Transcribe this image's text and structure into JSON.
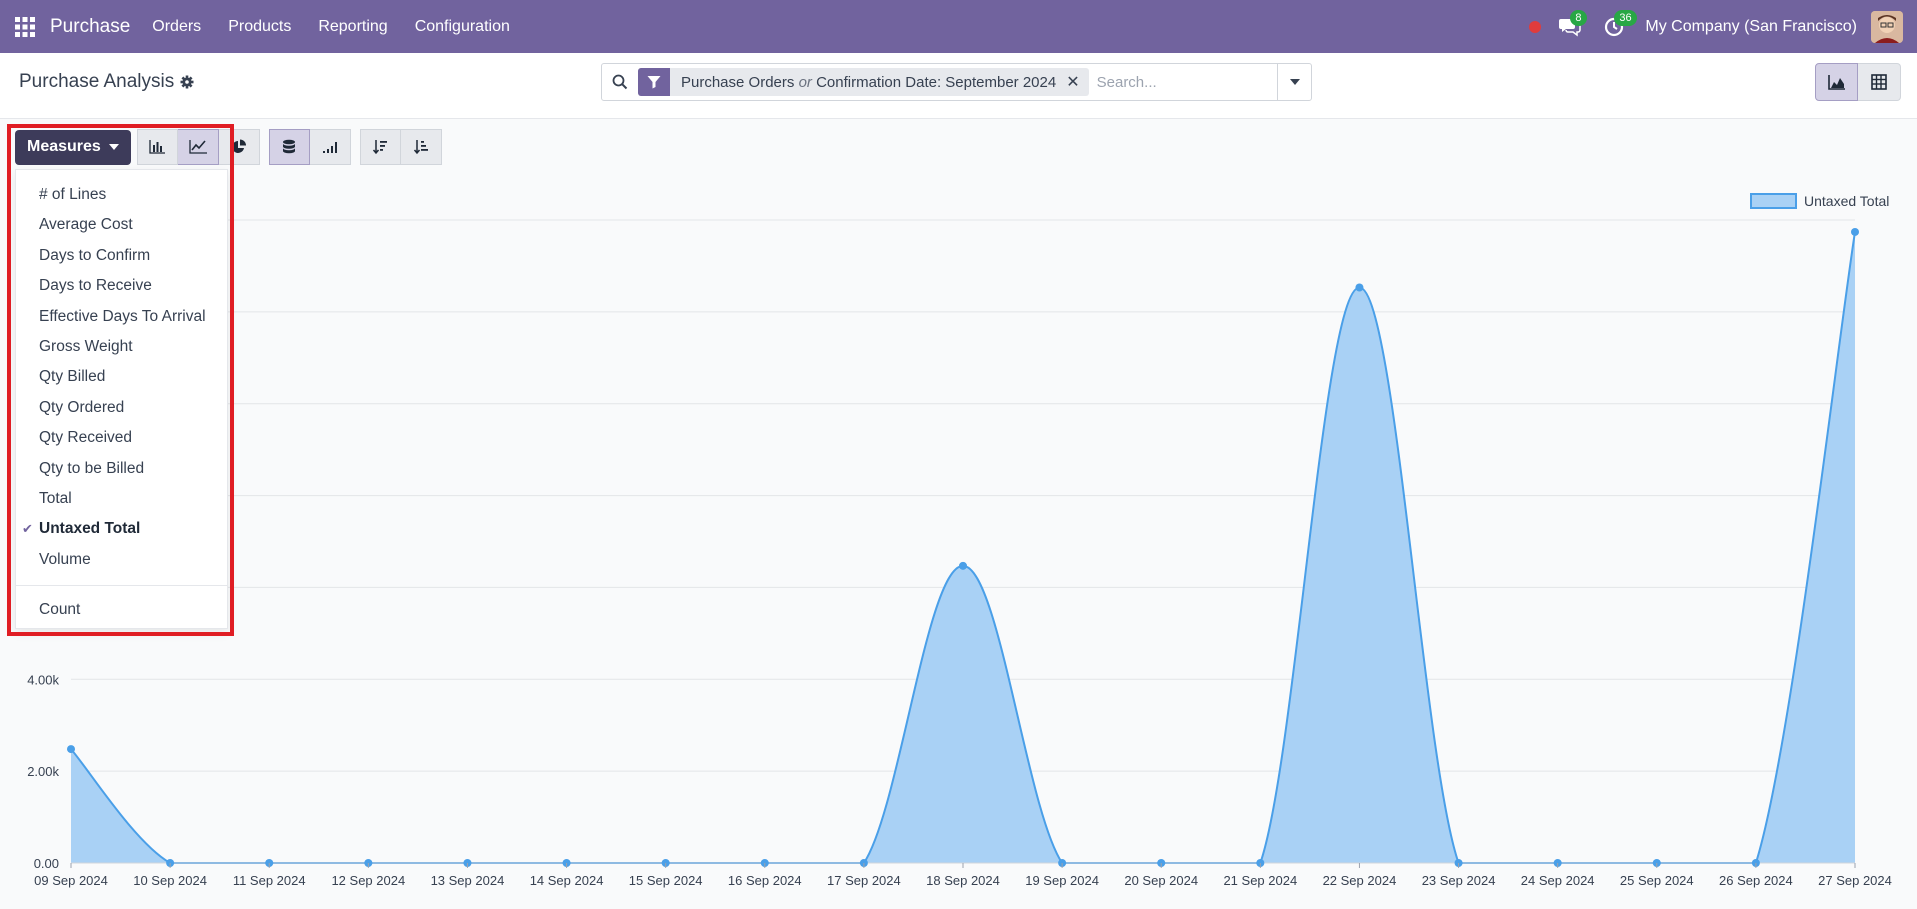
{
  "navbar": {
    "app_name": "Purchase",
    "menu": [
      "Orders",
      "Products",
      "Reporting",
      "Configuration"
    ],
    "messages_count": "8",
    "activities_count": "36",
    "company": "My Company (San Francisco)"
  },
  "control_panel": {
    "title": "Purchase Analysis",
    "facet_part1": "Purchase Orders",
    "facet_or": "or",
    "facet_part2": "Confirmation Date: September 2024",
    "search_placeholder": "Search..."
  },
  "toolbar": {
    "measures_label": "Measures"
  },
  "measures_menu": {
    "items": [
      "# of Lines",
      "Average Cost",
      "Days to Confirm",
      "Days to Receive",
      "Effective Days To Arrival",
      "Gross Weight",
      "Qty Billed",
      "Qty Ordered",
      "Qty Received",
      "Qty to be Billed",
      "Total",
      "Untaxed Total",
      "Volume"
    ],
    "selected_index": 11,
    "count_label": "Count"
  },
  "colors": {
    "navbar": "#71639e",
    "series_line": "#4a9fe8",
    "series_fill": "#a9d1f5",
    "highlight": "#e01d24"
  },
  "chart_data": {
    "type": "area",
    "categories": [
      "09 Sep 2024",
      "10 Sep 2024",
      "11 Sep 2024",
      "12 Sep 2024",
      "13 Sep 2024",
      "14 Sep 2024",
      "15 Sep 2024",
      "16 Sep 2024",
      "17 Sep 2024",
      "18 Sep 2024",
      "19 Sep 2024",
      "20 Sep 2024",
      "21 Sep 2024",
      "22 Sep 2024",
      "23 Sep 2024",
      "24 Sep 2024",
      "25 Sep 2024",
      "26 Sep 2024",
      "27 Sep 2024"
    ],
    "series": [
      {
        "name": "Untaxed Total",
        "values": [
          2480,
          0,
          0,
          0,
          0,
          0,
          0,
          0,
          0,
          6470,
          0,
          0,
          0,
          12530,
          0,
          0,
          0,
          0,
          13740
        ]
      }
    ],
    "ylim": [
      0,
      14000
    ],
    "y_ticks": [
      0,
      2000,
      4000
    ],
    "y_tick_labels": [
      "0.00",
      "2.00k",
      "4.00k"
    ],
    "grid": true,
    "legend_position": "top-right"
  }
}
